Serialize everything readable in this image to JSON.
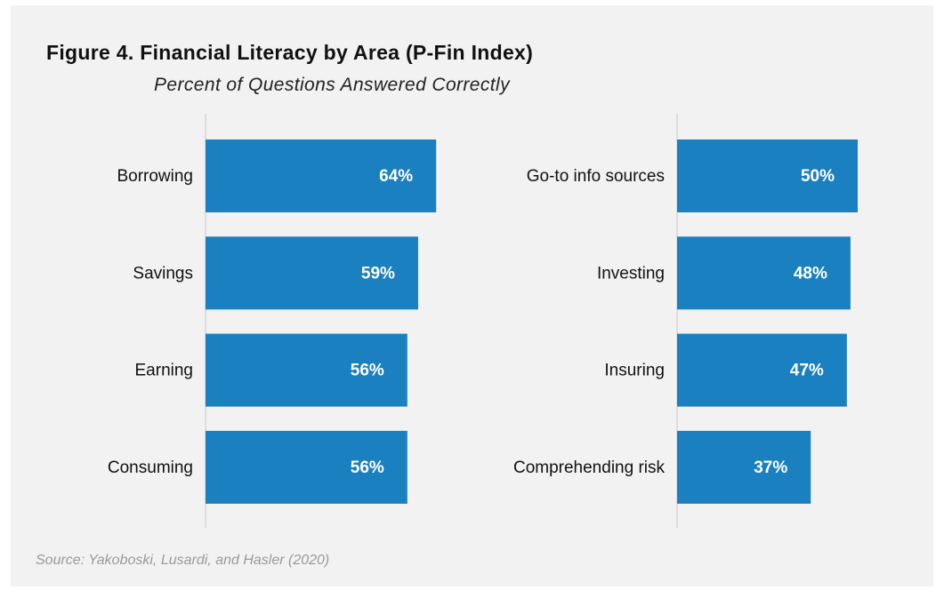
{
  "figure": {
    "title": "Figure 4. Financial Literacy by Area (P-Fin Index)",
    "subtitle": "Percent of Questions Answered Correctly",
    "source": "Source: Yakoboski, Lusardi, and Hasler (2020)"
  },
  "colors": {
    "bar": "#1a80bf",
    "bar_label": "#ffffff",
    "category_label": "#111111",
    "axis_line": "#c8c8c8",
    "background": "#f2f2f2"
  },
  "chart_data": [
    {
      "type": "bar",
      "orientation": "horizontal",
      "categories": [
        "Borrowing",
        "Savings",
        "Earning",
        "Consuming"
      ],
      "values": [
        64,
        59,
        56,
        56
      ],
      "value_labels": [
        "64%",
        "59%",
        "56%",
        "56%"
      ],
      "xlim": [
        0,
        100
      ],
      "grid": false
    },
    {
      "type": "bar",
      "orientation": "horizontal",
      "categories": [
        "Go-to info sources",
        "Investing",
        "Insuring",
        "Comprehending risk"
      ],
      "values": [
        50,
        48,
        47,
        37
      ],
      "value_labels": [
        "50%",
        "48%",
        "47%",
        "37%"
      ],
      "xlim": [
        0,
        100
      ],
      "grid": false
    }
  ]
}
